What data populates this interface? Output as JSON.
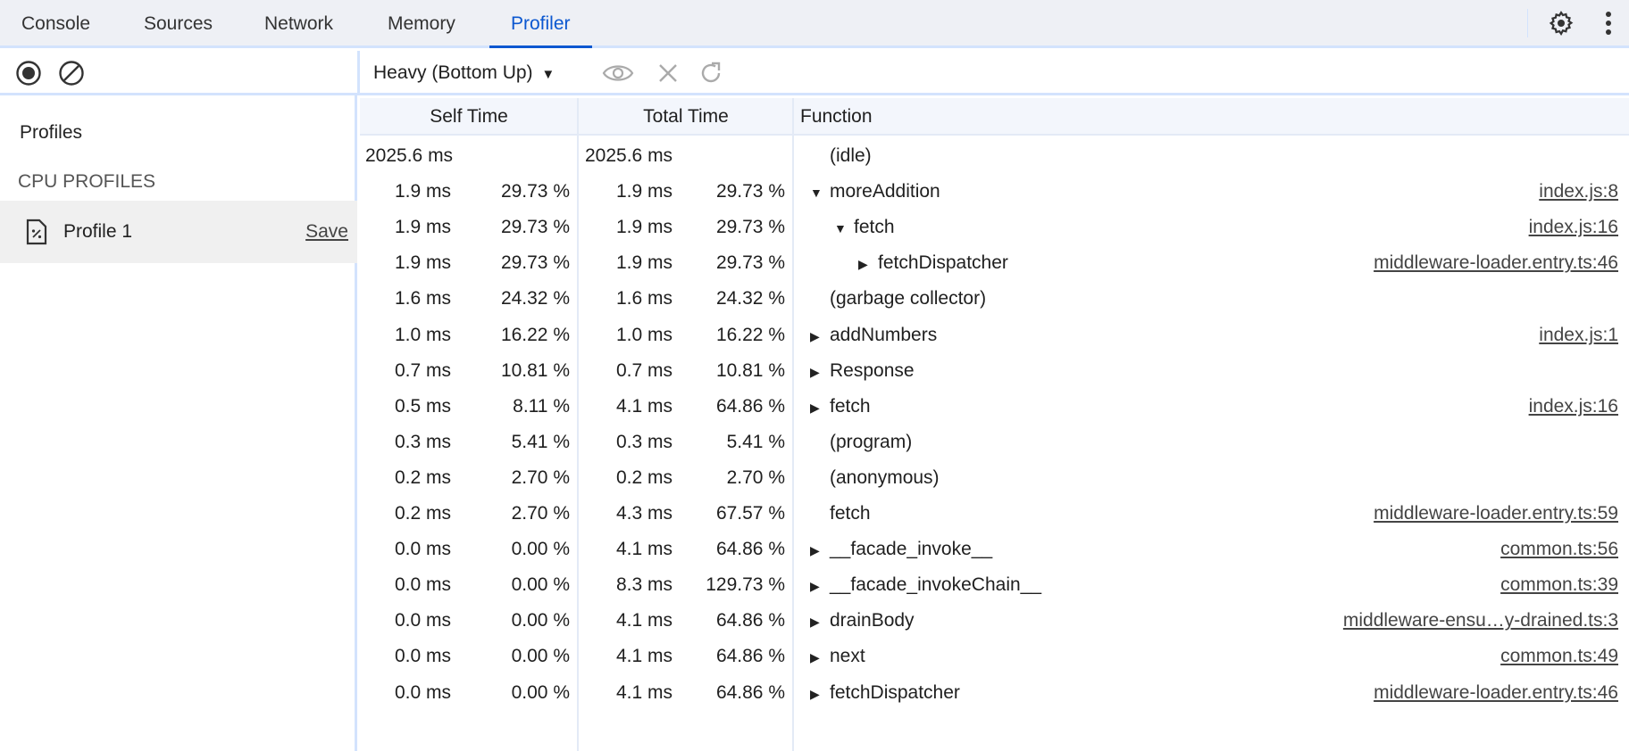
{
  "tabs": [
    {
      "label": "Console"
    },
    {
      "label": "Sources"
    },
    {
      "label": "Network"
    },
    {
      "label": "Memory"
    },
    {
      "label": "Profiler",
      "active": true
    }
  ],
  "accent": "#0b57d0",
  "toolbar": {
    "view_mode": "Heavy (Bottom Up)"
  },
  "sidebar": {
    "heading": "Profiles",
    "section": "CPU PROFILES",
    "profile": {
      "name": "Profile 1",
      "save_label": "Save"
    }
  },
  "table": {
    "headers": {
      "self": "Self Time",
      "total": "Total Time",
      "function": "Function"
    },
    "rows": [
      {
        "self": "2025.6 ms",
        "self_pct": "",
        "total": "2025.6 ms",
        "total_pct": "",
        "fn": "(idle)",
        "depth": 0,
        "arrow": "none",
        "url": ""
      },
      {
        "self": "1.9 ms",
        "self_pct": "29.73 %",
        "total": "1.9 ms",
        "total_pct": "29.73 %",
        "fn": "moreAddition",
        "depth": 0,
        "arrow": "down",
        "url": "index.js:8"
      },
      {
        "self": "1.9 ms",
        "self_pct": "29.73 %",
        "total": "1.9 ms",
        "total_pct": "29.73 %",
        "fn": "fetch",
        "depth": 1,
        "arrow": "down",
        "url": "index.js:16"
      },
      {
        "self": "1.9 ms",
        "self_pct": "29.73 %",
        "total": "1.9 ms",
        "total_pct": "29.73 %",
        "fn": "fetchDispatcher",
        "depth": 2,
        "arrow": "right",
        "url": "middleware-loader.entry.ts:46"
      },
      {
        "self": "1.6 ms",
        "self_pct": "24.32 %",
        "total": "1.6 ms",
        "total_pct": "24.32 %",
        "fn": "(garbage collector)",
        "depth": 0,
        "arrow": "none",
        "url": ""
      },
      {
        "self": "1.0 ms",
        "self_pct": "16.22 %",
        "total": "1.0 ms",
        "total_pct": "16.22 %",
        "fn": "addNumbers",
        "depth": 0,
        "arrow": "right",
        "url": "index.js:1"
      },
      {
        "self": "0.7 ms",
        "self_pct": "10.81 %",
        "total": "0.7 ms",
        "total_pct": "10.81 %",
        "fn": "Response",
        "depth": 0,
        "arrow": "right",
        "url": ""
      },
      {
        "self": "0.5 ms",
        "self_pct": "8.11 %",
        "total": "4.1 ms",
        "total_pct": "64.86 %",
        "fn": "fetch",
        "depth": 0,
        "arrow": "right",
        "url": "index.js:16"
      },
      {
        "self": "0.3 ms",
        "self_pct": "5.41 %",
        "total": "0.3 ms",
        "total_pct": "5.41 %",
        "fn": "(program)",
        "depth": 0,
        "arrow": "none",
        "url": ""
      },
      {
        "self": "0.2 ms",
        "self_pct": "2.70 %",
        "total": "0.2 ms",
        "total_pct": "2.70 %",
        "fn": "(anonymous)",
        "depth": 0,
        "arrow": "none",
        "url": ""
      },
      {
        "self": "0.2 ms",
        "self_pct": "2.70 %",
        "total": "4.3 ms",
        "total_pct": "67.57 %",
        "fn": "fetch",
        "depth": 0,
        "arrow": "none",
        "url": "middleware-loader.entry.ts:59"
      },
      {
        "self": "0.0 ms",
        "self_pct": "0.00 %",
        "total": "4.1 ms",
        "total_pct": "64.86 %",
        "fn": "__facade_invoke__",
        "depth": 0,
        "arrow": "right",
        "url": "common.ts:56"
      },
      {
        "self": "0.0 ms",
        "self_pct": "0.00 %",
        "total": "8.3 ms",
        "total_pct": "129.73 %",
        "fn": "__facade_invokeChain__",
        "depth": 0,
        "arrow": "right",
        "url": "common.ts:39"
      },
      {
        "self": "0.0 ms",
        "self_pct": "0.00 %",
        "total": "4.1 ms",
        "total_pct": "64.86 %",
        "fn": "drainBody",
        "depth": 0,
        "arrow": "right",
        "url": "middleware-ensu…y-drained.ts:3"
      },
      {
        "self": "0.0 ms",
        "self_pct": "0.00 %",
        "total": "4.1 ms",
        "total_pct": "64.86 %",
        "fn": "next",
        "depth": 0,
        "arrow": "right",
        "url": "common.ts:49"
      },
      {
        "self": "0.0 ms",
        "self_pct": "0.00 %",
        "total": "4.1 ms",
        "total_pct": "64.86 %",
        "fn": "fetchDispatcher",
        "depth": 0,
        "arrow": "right",
        "url": "middleware-loader.entry.ts:46"
      }
    ]
  }
}
